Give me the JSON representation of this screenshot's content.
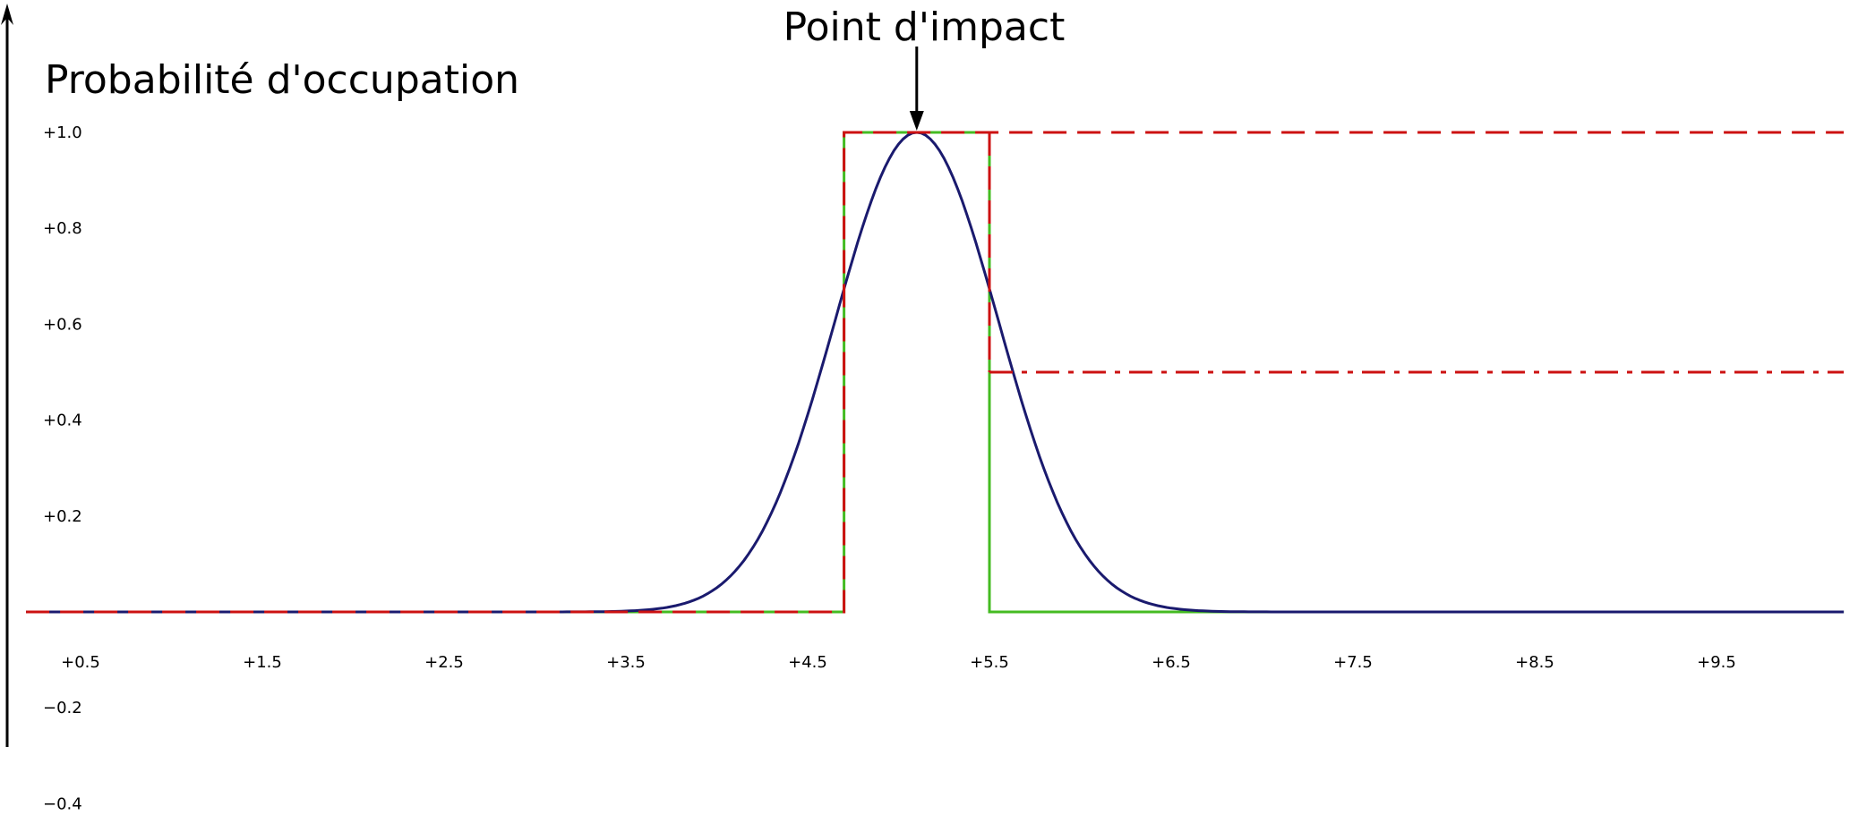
{
  "chart_data": {
    "type": "line",
    "title": "",
    "xlabel": "",
    "ylabel": "Probabilité d'occupation",
    "annotation": {
      "text": "Point d'impact",
      "x": 5.1,
      "y": 1.0
    },
    "xlim": [
      0.2,
      10.2
    ],
    "ylim": [
      -0.45,
      1.25
    ],
    "x_ticks": [
      0.5,
      1.5,
      2.5,
      3.5,
      4.5,
      5.5,
      6.5,
      7.5,
      8.5,
      9.5
    ],
    "x_tick_labels": [
      "+0.5",
      "+1.5",
      "+2.5",
      "+3.5",
      "+4.5",
      "+5.5",
      "+6.5",
      "+7.5",
      "+8.5",
      "+9.5"
    ],
    "y_ticks": [
      1.0,
      0.8,
      0.6,
      0.4,
      0.2,
      -0.2,
      -0.4
    ],
    "y_tick_labels": [
      "+1.0",
      "+0.8",
      "+0.6",
      "+0.4",
      "+0.2",
      "−0.2",
      "−0.4"
    ],
    "grid": false,
    "legend": "none",
    "series": [
      {
        "kind": "gaussian",
        "color": "#1a1a6e",
        "style": "solid",
        "mean": 5.1,
        "sigma": 0.45,
        "peak": 1.0,
        "x_range": [
          0.2,
          10.2
        ]
      },
      {
        "kind": "step",
        "color": "#44bb22",
        "style": "solid",
        "points": [
          [
            0.2,
            0
          ],
          [
            4.7,
            0
          ],
          [
            4.7,
            1.0
          ],
          [
            5.5,
            1.0
          ],
          [
            5.5,
            0
          ],
          [
            10.2,
            0
          ]
        ]
      },
      {
        "kind": "step",
        "color": "#cc1111",
        "style": "dashed",
        "points": [
          [
            0.2,
            0
          ],
          [
            4.7,
            0
          ],
          [
            4.7,
            1.0
          ],
          [
            10.2,
            1.0
          ]
        ]
      },
      {
        "kind": "step",
        "color": "#cc1111",
        "style": "dashed",
        "points": [
          [
            5.5,
            1.0
          ],
          [
            5.5,
            0.5
          ]
        ]
      },
      {
        "kind": "step",
        "color": "#cc1111",
        "style": "dashdot",
        "points": [
          [
            5.5,
            0.5
          ],
          [
            10.2,
            0.5
          ]
        ]
      }
    ]
  }
}
